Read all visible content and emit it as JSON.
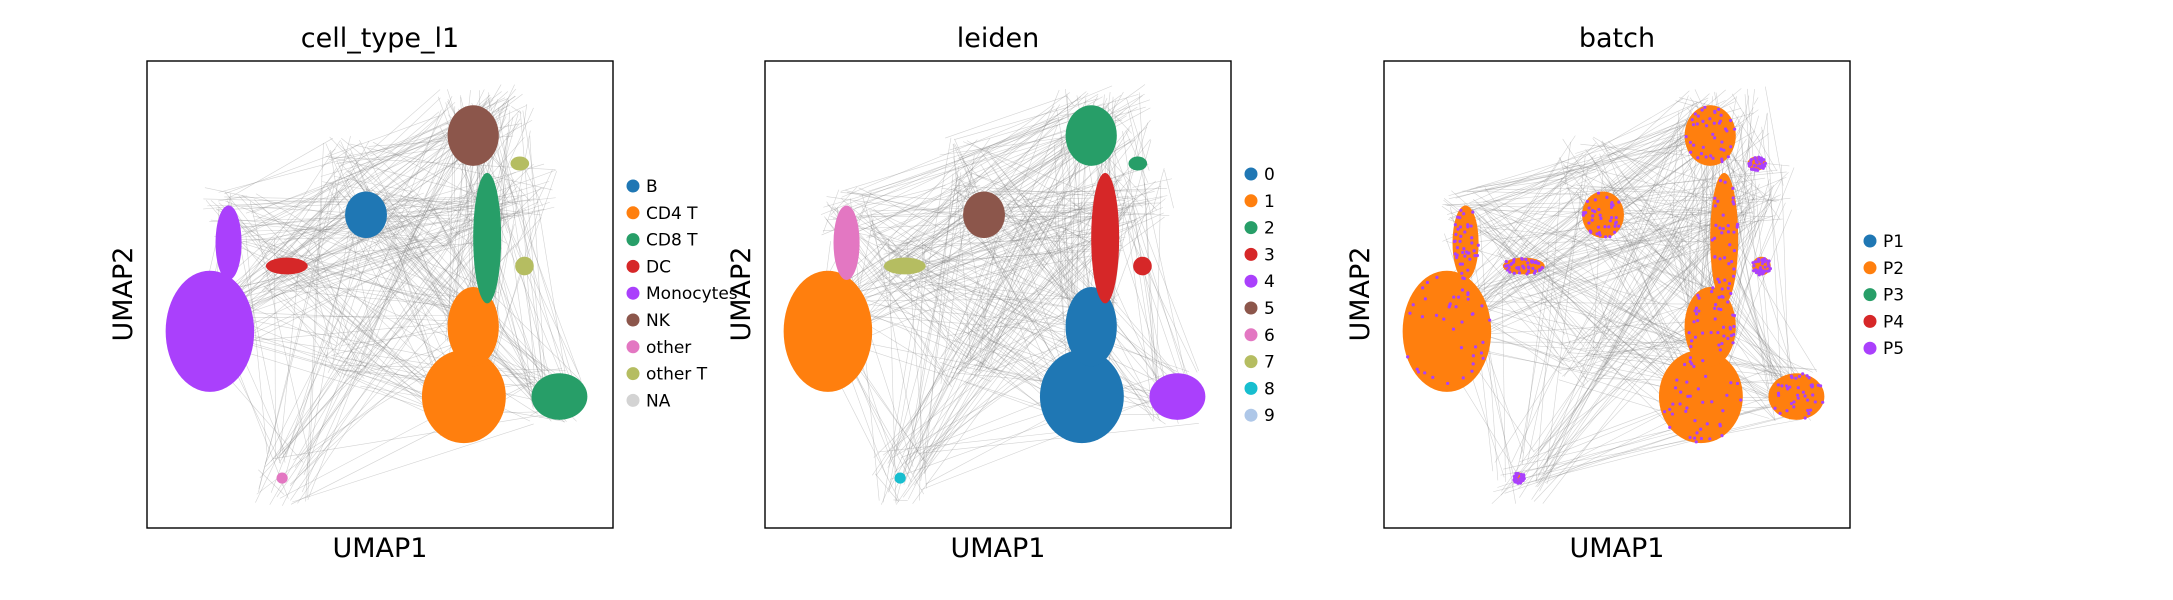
{
  "chart_data": [
    {
      "type": "scatter",
      "title": "cell_type_l1",
      "xlabel": "UMAP1",
      "ylabel": "UMAP2",
      "xticks": false,
      "yticks": false,
      "edges": true,
      "legend": {
        "position": "right",
        "entries": [
          {
            "label": "B",
            "color": "#1f77b4"
          },
          {
            "label": "CD4 T",
            "color": "#ff7f0e"
          },
          {
            "label": "CD8 T",
            "color": "#279e68"
          },
          {
            "label": "DC",
            "color": "#d62728"
          },
          {
            "label": "Monocytes",
            "color": "#aa40fc"
          },
          {
            "label": "NK",
            "color": "#8c564b"
          },
          {
            "label": "other",
            "color": "#e377c2"
          },
          {
            "label": "other T",
            "color": "#b5bd61"
          },
          {
            "label": "NA",
            "color": "#d3d3d3"
          }
        ]
      }
    },
    {
      "type": "scatter",
      "title": "leiden",
      "xlabel": "UMAP1",
      "ylabel": "UMAP2",
      "xticks": false,
      "yticks": false,
      "edges": true,
      "legend": {
        "position": "right",
        "entries": [
          {
            "label": "0",
            "color": "#1f77b4"
          },
          {
            "label": "1",
            "color": "#ff7f0e"
          },
          {
            "label": "2",
            "color": "#279e68"
          },
          {
            "label": "3",
            "color": "#d62728"
          },
          {
            "label": "4",
            "color": "#aa40fc"
          },
          {
            "label": "5",
            "color": "#8c564b"
          },
          {
            "label": "6",
            "color": "#e377c2"
          },
          {
            "label": "7",
            "color": "#b5bd61"
          },
          {
            "label": "8",
            "color": "#17becf"
          },
          {
            "label": "9",
            "color": "#aec7e8"
          }
        ]
      }
    },
    {
      "type": "scatter",
      "title": "batch",
      "xlabel": "UMAP1",
      "ylabel": "UMAP2",
      "xticks": false,
      "yticks": false,
      "edges": true,
      "legend": {
        "position": "right",
        "entries": [
          {
            "label": "P1",
            "color": "#1f77b4"
          },
          {
            "label": "P2",
            "color": "#ff7f0e"
          },
          {
            "label": "P3",
            "color": "#279e68"
          },
          {
            "label": "P4",
            "color": "#d62728"
          },
          {
            "label": "P5",
            "color": "#aa40fc"
          }
        ]
      }
    }
  ],
  "edge_color": "#808080"
}
